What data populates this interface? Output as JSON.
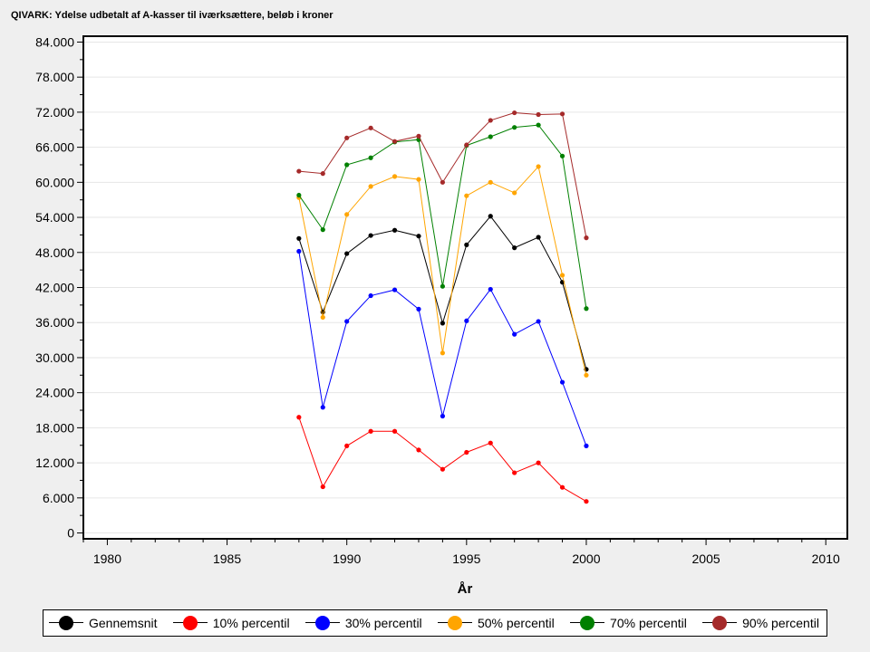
{
  "chart_data": {
    "type": "line",
    "title": "QIVARK: Ydelse udbetalt af A-kasser til iværksættere, beløb i kroner",
    "xlabel": "År",
    "ylabel": "",
    "xlim": [
      1979,
      2010.9
    ],
    "ylim": [
      -1000,
      85000
    ],
    "x_ticks": [
      1980,
      1985,
      1990,
      1995,
      2000,
      2005,
      2010
    ],
    "x_tick_labels": [
      "1980",
      "1985",
      "1990",
      "1995",
      "2000",
      "2005",
      "2010"
    ],
    "y_ticks": [
      0,
      6000,
      12000,
      18000,
      24000,
      30000,
      36000,
      42000,
      48000,
      54000,
      60000,
      66000,
      72000,
      78000,
      84000
    ],
    "y_tick_labels": [
      "0",
      "6.000",
      "12.000",
      "18.000",
      "24.000",
      "30.000",
      "36.000",
      "42.000",
      "48.000",
      "54.000",
      "60.000",
      "66.000",
      "72.000",
      "78.000",
      "84.000"
    ],
    "grid": true,
    "legend_position": "bottom",
    "x": [
      1988,
      1989,
      1990,
      1991,
      1992,
      1993,
      1994,
      1995,
      1996,
      1997,
      1998,
      1999,
      2000
    ],
    "series": [
      {
        "name": "Gennemsnit",
        "color": "#000000",
        "values": [
          50400,
          37800,
          47800,
          50900,
          51800,
          50800,
          35900,
          49300,
          54200,
          48800,
          50600,
          42900,
          28000
        ]
      },
      {
        "name": "10% percentil",
        "color": "#ff0000",
        "values": [
          19800,
          7900,
          14900,
          17400,
          17400,
          14200,
          10900,
          13800,
          15400,
          10300,
          12000,
          7800,
          5400
        ]
      },
      {
        "name": "30% percentil",
        "color": "#0000ff",
        "values": [
          48200,
          21500,
          36200,
          40600,
          41600,
          38300,
          20000,
          36300,
          41700,
          34000,
          36200,
          25800,
          14900
        ]
      },
      {
        "name": "50% percentil",
        "color": "#ffa500",
        "values": [
          57400,
          36900,
          54500,
          59300,
          61000,
          60500,
          30800,
          57700,
          60000,
          58200,
          62700,
          44100,
          27000
        ]
      },
      {
        "name": "70% percentil",
        "color": "#008000",
        "values": [
          57800,
          51900,
          63000,
          64200,
          66900,
          67300,
          42200,
          66300,
          67800,
          69400,
          69800,
          64500,
          38400
        ]
      },
      {
        "name": "90% percentil",
        "color": "#a52a2a",
        "values": [
          61900,
          61500,
          67600,
          69300,
          67000,
          67900,
          60000,
          66400,
          70600,
          71900,
          71600,
          71700,
          50500
        ]
      }
    ]
  }
}
